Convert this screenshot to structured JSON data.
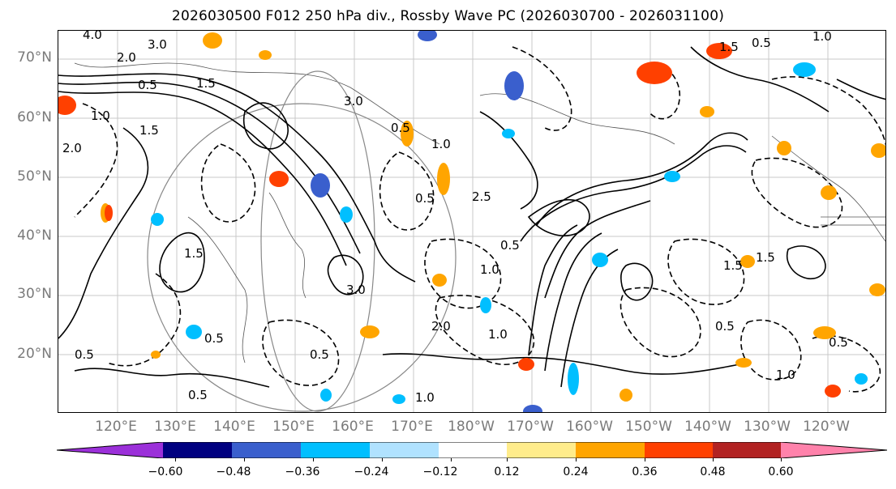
{
  "title": "2026030500 F012 250 hPa div., Rossby Wave PC (2026030700 - 2026031100)",
  "lat_labels": [
    "70°N",
    "60°N",
    "50°N",
    "40°N",
    "30°N",
    "20°N"
  ],
  "lon_labels": [
    "120°E",
    "130°E",
    "140°E",
    "150°E",
    "160°E",
    "170°E",
    "180°W",
    "170°W",
    "160°W",
    "150°W",
    "140°W",
    "130°W",
    "120°W"
  ],
  "colorbar": {
    "colors": [
      "#9b30d9",
      "#000080",
      "#3a5fcd",
      "#00bfff",
      "#b0e2ff",
      "#ffffff",
      "#ffec8b",
      "#ffa500",
      "#ff4000",
      "#b22222",
      "#ff82ab"
    ],
    "tick_labels": [
      "−0.60",
      "−0.48",
      "−0.36",
      "−0.24",
      "−0.12",
      "0.12",
      "0.24",
      "0.36",
      "0.48",
      "0.60"
    ]
  },
  "contour_labels": [
    "3.0",
    "2.0",
    "1.5",
    "0.5",
    "4.0",
    "1.0",
    "3.0",
    "0.5",
    "1.5",
    "2.0",
    "1.0",
    "2.5",
    "0.5",
    "1.5",
    "3.0",
    "0.5",
    "1.0",
    "2.0",
    "0.5",
    "1.0",
    "0.5",
    "1.5",
    "0.5",
    "1.0",
    "1.5",
    "0.5",
    "0.5",
    "1.0",
    "1.5",
    "0.5",
    "0.5",
    "1.0"
  ]
}
